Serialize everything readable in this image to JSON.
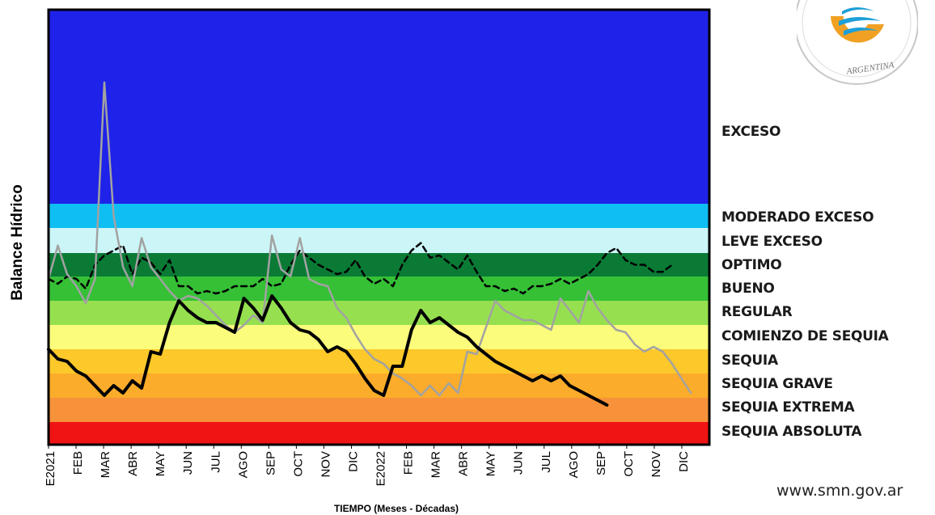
{
  "chart_data": {
    "type": "line",
    "ylabel": "Balance Hídrico",
    "xlabel": "TIEMPO (Meses - Décadas)",
    "x_tick_labels": [
      "E2021",
      "FEB",
      "MAR",
      "ABR",
      "MAY",
      "JUN",
      "JUL",
      "AGO",
      "SEP",
      "OCT",
      "NOV",
      "DIC",
      "E2022",
      "FEB",
      "MAR",
      "ABR",
      "MAY",
      "JUN",
      "JUL",
      "AGO",
      "SEP",
      "OCT",
      "NOV",
      "DIC"
    ],
    "decades_per_month": 3,
    "bands": [
      {
        "label": "EXCESO",
        "color": "#1f22e8",
        "top": 0,
        "bottom": 8
      },
      {
        "label": "MODERADO EXCESO",
        "color": "#0fbef2",
        "top": 8,
        "bottom": 9
      },
      {
        "label": "LEVE EXCESO",
        "color": "#ccf5f7",
        "top": 9,
        "bottom": 10
      },
      {
        "label": "OPTIMO",
        "color": "#0a7a35",
        "top": 10,
        "bottom": 11
      },
      {
        "label": "BUENO",
        "color": "#35c036",
        "top": 11,
        "bottom": 12
      },
      {
        "label": "REGULAR",
        "color": "#96e050",
        "top": 12,
        "bottom": 13
      },
      {
        "label": "COMIENZO DE SEQUIA",
        "color": "#fbfc7c",
        "top": 13,
        "bottom": 14
      },
      {
        "label": "SEQUIA",
        "color": "#fcc82a",
        "top": 14,
        "bottom": 15
      },
      {
        "label": "SEQUIA GRAVE",
        "color": "#fbac2a",
        "top": 15,
        "bottom": 16
      },
      {
        "label": "SEQUIA EXTREMA",
        "color": "#f7923a",
        "top": 16,
        "bottom": 17
      },
      {
        "label": "SEQUIA ABSOLUTA",
        "color": "#f01414",
        "top": 17,
        "bottom": 18
      }
    ],
    "ylim": [
      0,
      18
    ],
    "series": [
      {
        "style": "solid-black",
        "color": "#000000",
        "values": [
          14.0,
          14.4,
          14.5,
          14.9,
          15.1,
          15.5,
          15.9,
          15.5,
          15.8,
          15.3,
          15.6,
          14.1,
          14.2,
          12.9,
          12.0,
          12.4,
          12.7,
          12.9,
          12.9,
          13.1,
          13.3,
          11.9,
          12.3,
          12.8,
          11.8,
          12.3,
          12.9,
          13.2,
          13.3,
          13.6,
          14.1,
          13.9,
          14.1,
          14.6,
          15.2,
          15.7,
          15.9,
          14.7,
          14.7,
          13.2,
          12.4,
          12.9,
          12.7,
          13.0,
          13.3,
          13.5,
          13.9,
          14.2,
          14.5,
          14.7,
          14.9,
          15.1,
          15.3,
          15.1,
          15.3,
          15.1,
          15.5,
          15.7,
          15.9,
          16.1,
          16.3
        ]
      },
      {
        "style": "dashed-black",
        "color": "#000000",
        "values": [
          11.1,
          11.3,
          11.0,
          11.1,
          11.5,
          10.5,
          10.1,
          9.9,
          9.7,
          10.9,
          10.2,
          10.4,
          10.9,
          10.3,
          11.4,
          11.4,
          11.7,
          11.6,
          11.7,
          11.6,
          11.4,
          11.4,
          11.4,
          11.1,
          11.4,
          11.3,
          10.5,
          9.9,
          10.2,
          10.5,
          10.7,
          10.9,
          10.8,
          10.3,
          11.0,
          11.3,
          11.1,
          11.4,
          10.5,
          9.9,
          9.6,
          10.2,
          10.1,
          10.4,
          10.7,
          10.1,
          10.8,
          11.4,
          11.4,
          11.6,
          11.5,
          11.7,
          11.4,
          11.4,
          11.3,
          11.1,
          11.3,
          11.1,
          10.9,
          10.5,
          10.0,
          9.8,
          10.3,
          10.5,
          10.5,
          10.8,
          10.8,
          10.5
        ]
      },
      {
        "style": "solid-gray",
        "color": "#a2a2a2",
        "values": [
          11.1,
          9.7,
          10.9,
          11.4,
          12.1,
          11.1,
          3.0,
          8.5,
          10.6,
          11.4,
          9.4,
          10.6,
          11.1,
          11.6,
          12.0,
          11.8,
          11.9,
          12.2,
          12.6,
          13.0,
          13.3,
          13.0,
          12.6,
          12.9,
          9.3,
          10.7,
          11.0,
          9.4,
          11.1,
          11.3,
          11.4,
          12.3,
          12.7,
          13.4,
          14.0,
          14.4,
          14.6,
          15.0,
          15.2,
          15.5,
          15.9,
          15.5,
          15.9,
          15.4,
          15.8,
          14.1,
          14.2,
          13.1,
          12.0,
          12.4,
          12.6,
          12.8,
          12.8,
          13.0,
          13.2,
          11.9,
          12.4,
          12.9,
          11.6,
          12.3,
          12.8,
          13.2,
          13.3,
          13.8,
          14.1,
          13.9,
          14.1,
          14.6,
          15.2,
          15.8
        ]
      }
    ],
    "grid": false,
    "legend_position": "right"
  },
  "legend_labels": [
    "EXCESO",
    "MODERADO EXCESO",
    "LEVE EXCESO",
    "OPTIMO",
    "BUENO",
    "REGULAR",
    "COMIENZO DE SEQUIA",
    "SEQUIA",
    "SEQUIA GRAVE",
    "SEQUIA EXTREMA",
    "SEQUIA ABSOLUTA"
  ],
  "logo": {
    "text": "ARGENTINA",
    "colors": {
      "ring": "#c7c7c7",
      "orange": "#f0a022",
      "blue": "#1d9fd8"
    }
  },
  "website": "www.smn.gov.ar"
}
